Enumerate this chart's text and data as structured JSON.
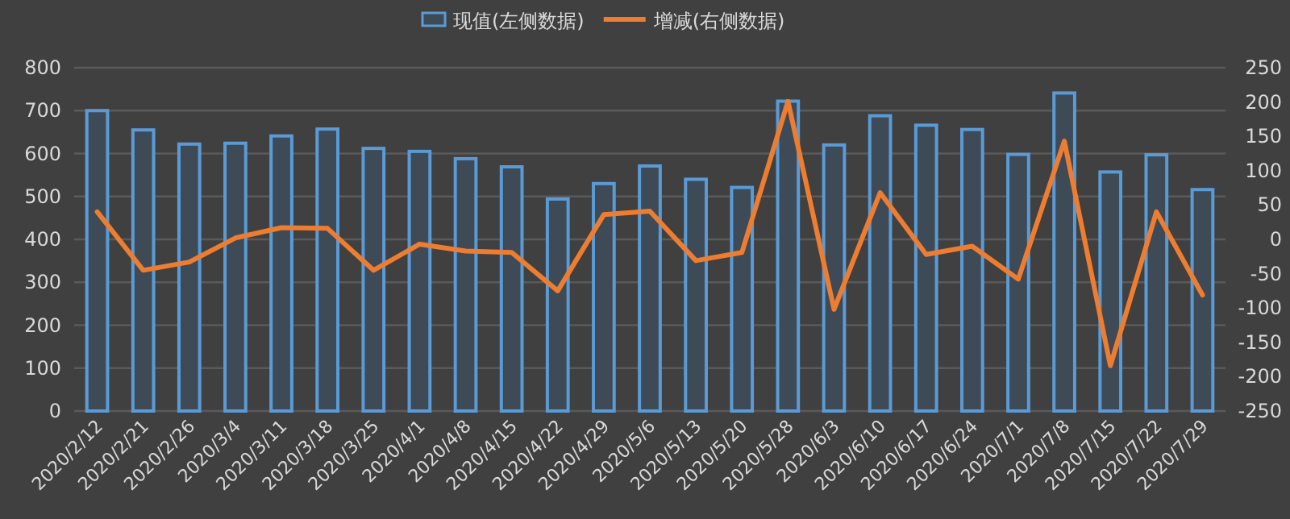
{
  "chart_data": {
    "type": "bar",
    "categories": [
      "2020/2/12",
      "2020/2/21",
      "2020/2/26",
      "2020/3/4",
      "2020/3/11",
      "2020/3/18",
      "2020/3/25",
      "2020/4/1",
      "2020/4/8",
      "2020/4/15",
      "2020/4/22",
      "2020/4/29",
      "2020/5/6",
      "2020/5/13",
      "2020/5/20",
      "2020/5/28",
      "2020/6/3",
      "2020/6/10",
      "2020/6/17",
      "2020/6/24",
      "2020/7/1",
      "2020/7/8",
      "2020/7/15",
      "2020/7/22",
      "2020/7/29"
    ],
    "series": [
      {
        "name": "现值(左侧数据)",
        "color": "#5b9bd5",
        "values": [
          700,
          655,
          622,
          624,
          641,
          657,
          612,
          605,
          588,
          569,
          494,
          530,
          571,
          540,
          521,
          722,
          620,
          688,
          666,
          656,
          598,
          741,
          557,
          597,
          516
        ]
      },
      {
        "name": "增减(右侧数据)",
        "type": "line",
        "axis": "y2",
        "color": "#ed7d31",
        "values": [
          40,
          -45,
          -33,
          2,
          17,
          16,
          -45,
          -7,
          -17,
          -19,
          -75,
          36,
          41,
          -31,
          -19,
          201,
          -102,
          68,
          -22,
          -10,
          -58,
          143,
          -184,
          40,
          -81
        ]
      }
    ],
    "ylim": [
      0,
      800
    ],
    "yticks": [
      0,
      100,
      200,
      300,
      400,
      500,
      600,
      700,
      800
    ],
    "y2lim": [
      -250,
      250
    ],
    "y2ticks": [
      -250,
      -200,
      -150,
      -100,
      -50,
      0,
      50,
      100,
      150,
      200,
      250
    ],
    "grid": "y",
    "legend": "top"
  }
}
